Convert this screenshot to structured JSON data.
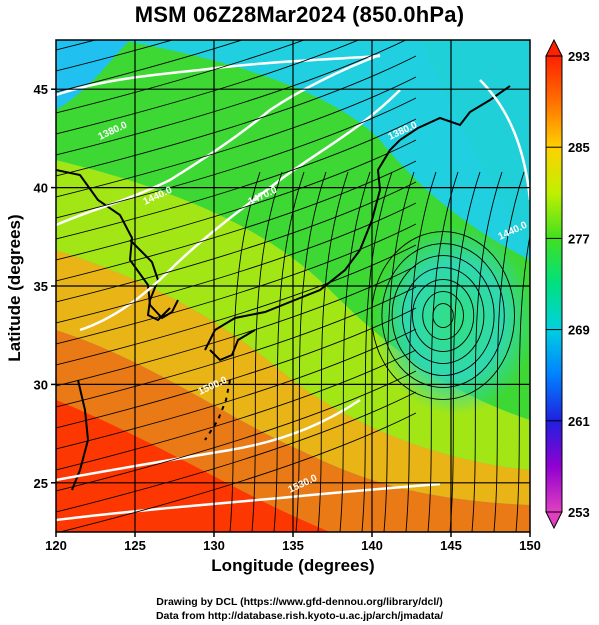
{
  "title": "MSM 06Z28Mar2024 (850.0hPa)",
  "xlabel": "Longitude (degrees)",
  "ylabel": "Latitude  (degrees)",
  "credits": [
    "Drawing by DCL (https://www.gfd-dennou.org/library/dcl/)",
    "Data from http://database.rish.kyoto-u.ac.jp/arch/jmadata/"
  ],
  "chart_data": {
    "type": "heatmap",
    "xlim": [
      120,
      150
    ],
    "ylim": [
      22.5,
      47.5
    ],
    "x_ticks": [
      "120",
      "125",
      "130",
      "135",
      "140",
      "145",
      "150"
    ],
    "y_ticks": [
      "25",
      "30",
      "35",
      "40",
      "45"
    ],
    "grid": true,
    "colorbar": {
      "range": [
        253,
        293
      ],
      "tick_labels": [
        "253",
        "261",
        "269",
        "277",
        "285",
        "293"
      ],
      "colors": [
        "#e040c0",
        "#9000d0",
        "#2020e0",
        "#0080ff",
        "#00d0e0",
        "#00e080",
        "#40e020",
        "#c0f000",
        "#ffd000",
        "#ff7000",
        "#ff2000"
      ]
    },
    "contour_labels": [
      "1380.0",
      "1440.0",
      "1470.0",
      "1380.0",
      "1440.0",
      "1500.0",
      "1530.0"
    ],
    "cyclone_center": [
      144.5,
      33.5
    ]
  }
}
